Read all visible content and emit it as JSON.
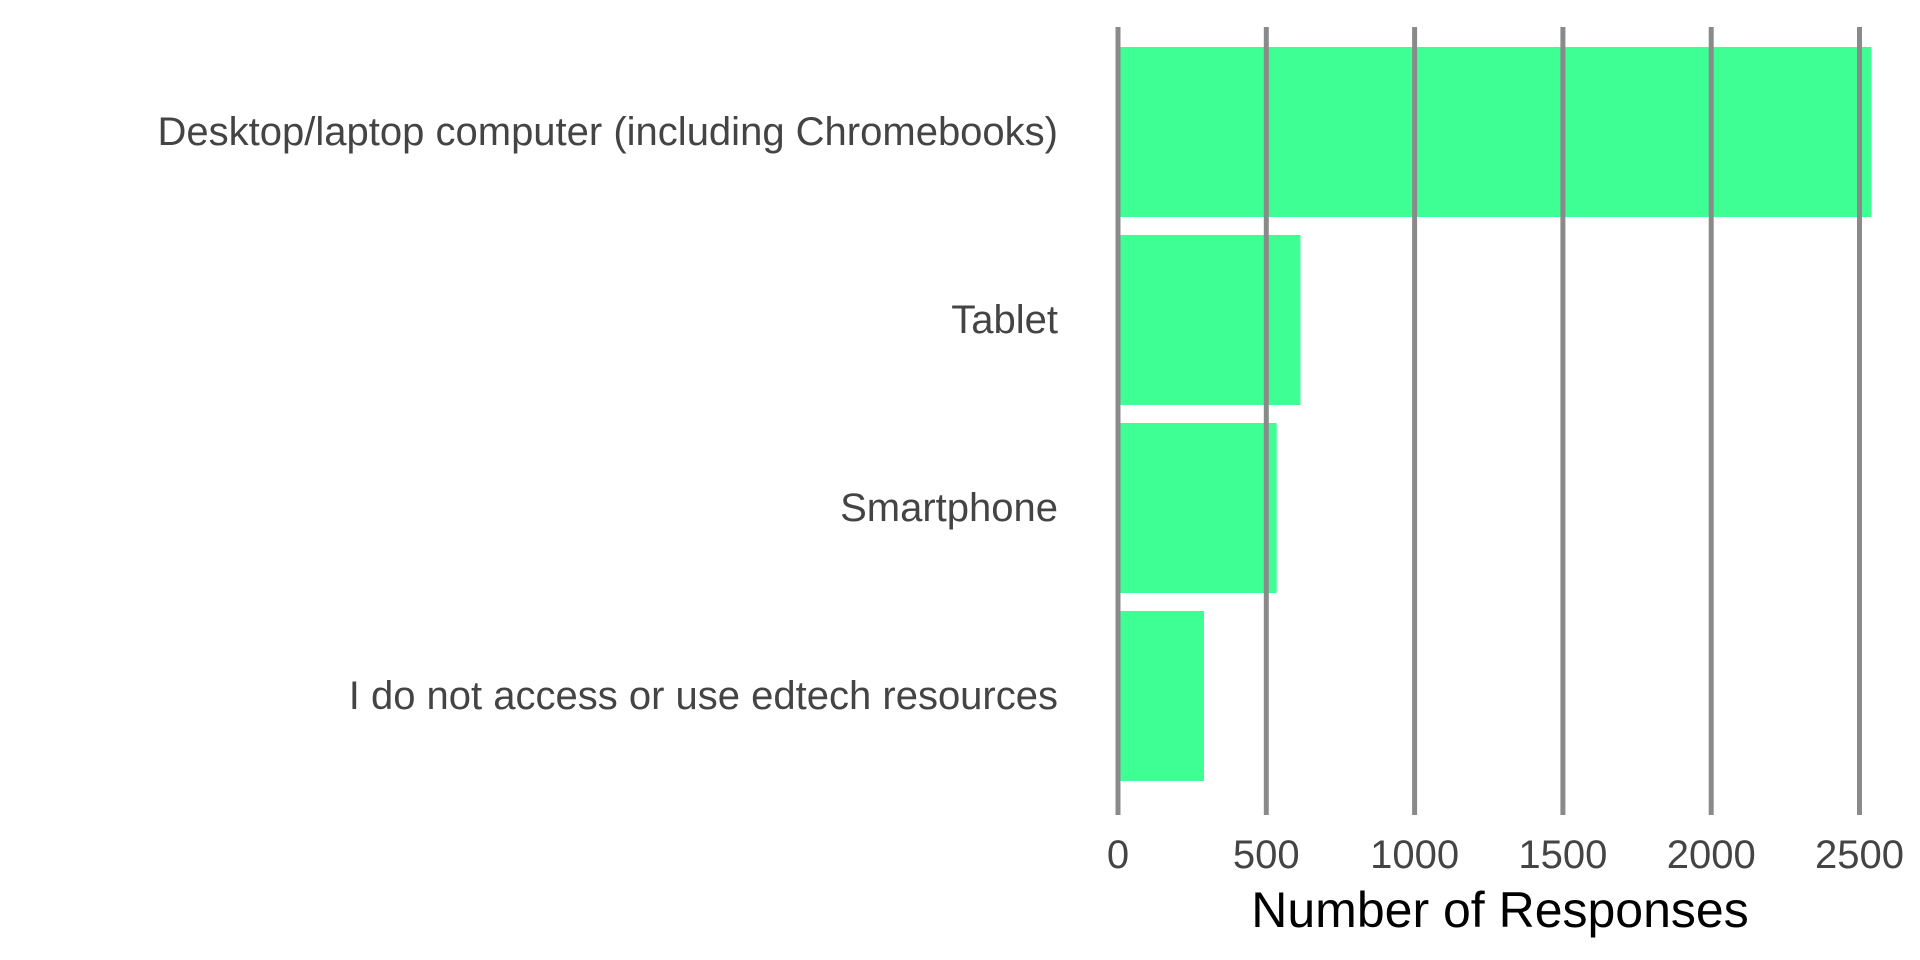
{
  "chart_data": {
    "type": "bar",
    "orientation": "horizontal",
    "categories": [
      "Desktop/laptop computer (including Chromebooks)",
      "Tablet",
      "Smartphone",
      "I do not access or use edtech resources"
    ],
    "values": [
      2540,
      615,
      535,
      290
    ],
    "xlabel": "Number of Responses",
    "ylabel": "",
    "xlim": [
      0,
      2540
    ],
    "xticks": [
      0,
      500,
      1000,
      1500,
      2000,
      2500
    ],
    "grid": "vertical",
    "bar_color": "#3dff93"
  }
}
